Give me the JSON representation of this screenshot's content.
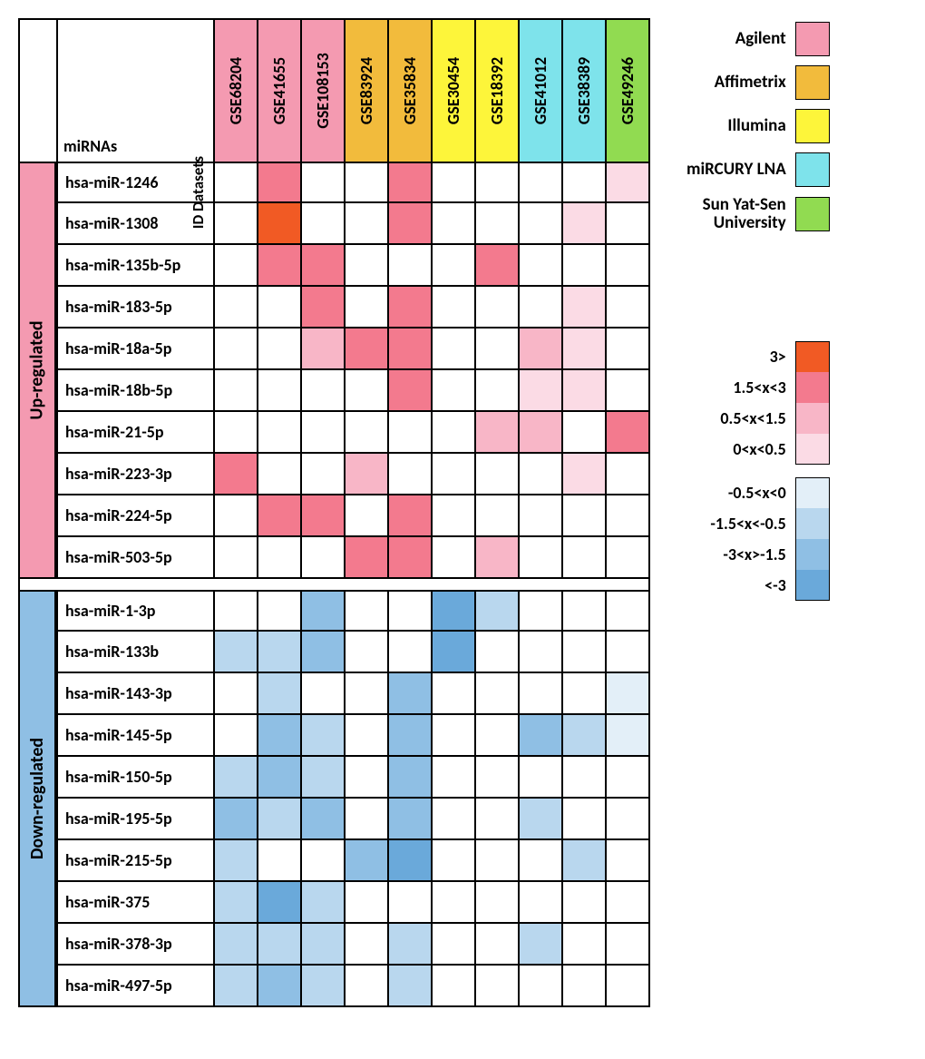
{
  "labels": {
    "mirnas_header": "miRNAs",
    "id_datasets": "ID Datasets",
    "up_section": "Up-regulated",
    "down_section": "Down-regulated"
  },
  "datasets": [
    {
      "id": "GSE68204",
      "platform_color": "#f49ab1"
    },
    {
      "id": "GSE41655",
      "platform_color": "#f49ab1"
    },
    {
      "id": "GSE108153",
      "platform_color": "#f49ab1"
    },
    {
      "id": "GSE83924",
      "platform_color": "#f2bb3c"
    },
    {
      "id": "GSE35834",
      "platform_color": "#f2bb3c"
    },
    {
      "id": "GSE30454",
      "platform_color": "#fdf53a"
    },
    {
      "id": "GSE18392",
      "platform_color": "#fdf53a"
    },
    {
      "id": "GSE41012",
      "platform_color": "#7ee3eb"
    },
    {
      "id": "GSE38389",
      "platform_color": "#7ee3eb"
    },
    {
      "id": "GSE49246",
      "platform_color": "#91db51"
    }
  ],
  "value_colors": {
    "p3": "#f15a24",
    "p2": "#f37a8e",
    "p1": "#f8b6c7",
    "p0": "#fbdbe5",
    "n0": "#e3eff8",
    "n1": "#b9d7ee",
    "n2": "#8fbfe4",
    "n3": "#6aa9da",
    "blank": "#ffffff"
  },
  "up_rows": [
    {
      "name": "hsa-miR-1246",
      "cells": [
        "blank",
        "p2",
        "blank",
        "blank",
        "p2",
        "blank",
        "blank",
        "blank",
        "blank",
        "p0"
      ]
    },
    {
      "name": "hsa-miR-1308",
      "cells": [
        "blank",
        "p3",
        "blank",
        "blank",
        "p2",
        "blank",
        "blank",
        "blank",
        "p0",
        "blank"
      ]
    },
    {
      "name": "hsa-miR-135b-5p",
      "cells": [
        "blank",
        "p2",
        "p2",
        "blank",
        "blank",
        "blank",
        "p2",
        "blank",
        "blank",
        "blank"
      ]
    },
    {
      "name": "hsa-miR-183-5p",
      "cells": [
        "blank",
        "blank",
        "p2",
        "blank",
        "p2",
        "blank",
        "blank",
        "blank",
        "p0",
        "blank"
      ]
    },
    {
      "name": "hsa-miR-18a-5p",
      "cells": [
        "blank",
        "blank",
        "p1",
        "p2",
        "p2",
        "blank",
        "blank",
        "p1",
        "p0",
        "blank"
      ]
    },
    {
      "name": "hsa-miR-18b-5p",
      "cells": [
        "blank",
        "blank",
        "blank",
        "blank",
        "p2",
        "blank",
        "blank",
        "p0",
        "p0",
        "blank"
      ]
    },
    {
      "name": "hsa-miR-21-5p",
      "cells": [
        "blank",
        "blank",
        "blank",
        "blank",
        "blank",
        "blank",
        "p1",
        "p1",
        "blank",
        "p2"
      ]
    },
    {
      "name": "hsa-miR-223-3p",
      "cells": [
        "p2",
        "blank",
        "blank",
        "p1",
        "blank",
        "blank",
        "blank",
        "blank",
        "p0",
        "blank"
      ]
    },
    {
      "name": "hsa-miR-224-5p",
      "cells": [
        "blank",
        "p2",
        "p2",
        "blank",
        "p2",
        "blank",
        "blank",
        "blank",
        "blank",
        "blank"
      ]
    },
    {
      "name": "hsa-miR-503-5p",
      "cells": [
        "blank",
        "blank",
        "blank",
        "p2",
        "p2",
        "blank",
        "p1",
        "blank",
        "blank",
        "blank"
      ]
    }
  ],
  "down_rows": [
    {
      "name": "hsa-miR-1-3p",
      "cells": [
        "blank",
        "blank",
        "n2",
        "blank",
        "blank",
        "n3",
        "n1",
        "blank",
        "blank",
        "blank"
      ]
    },
    {
      "name": "hsa-miR-133b",
      "cells": [
        "n1",
        "n1",
        "n2",
        "blank",
        "blank",
        "n3",
        "blank",
        "blank",
        "blank",
        "blank"
      ]
    },
    {
      "name": "hsa-miR-143-3p",
      "cells": [
        "blank",
        "n1",
        "blank",
        "blank",
        "n2",
        "blank",
        "blank",
        "blank",
        "blank",
        "n0"
      ]
    },
    {
      "name": "hsa-miR-145-5p",
      "cells": [
        "blank",
        "n2",
        "n1",
        "blank",
        "n2",
        "blank",
        "blank",
        "n2",
        "n1",
        "n0"
      ]
    },
    {
      "name": "hsa-miR-150-5p",
      "cells": [
        "n1",
        "n2",
        "n1",
        "blank",
        "n2",
        "blank",
        "blank",
        "blank",
        "blank",
        "blank"
      ]
    },
    {
      "name": "hsa-miR-195-5p",
      "cells": [
        "n2",
        "n1",
        "n2",
        "blank",
        "n2",
        "blank",
        "blank",
        "n1",
        "blank",
        "blank"
      ]
    },
    {
      "name": "hsa-miR-215-5p",
      "cells": [
        "n1",
        "blank",
        "blank",
        "n2",
        "n3",
        "blank",
        "blank",
        "blank",
        "n1",
        "blank"
      ]
    },
    {
      "name": "hsa-miR-375",
      "cells": [
        "n1",
        "n3",
        "n1",
        "blank",
        "blank",
        "blank",
        "blank",
        "blank",
        "blank",
        "blank"
      ]
    },
    {
      "name": "hsa-miR-378-3p",
      "cells": [
        "n1",
        "n1",
        "n1",
        "blank",
        "n1",
        "blank",
        "blank",
        "n1",
        "blank",
        "blank"
      ]
    },
    {
      "name": "hsa-miR-497-5p",
      "cells": [
        "n1",
        "n2",
        "n1",
        "blank",
        "n1",
        "blank",
        "blank",
        "blank",
        "blank",
        "blank"
      ]
    }
  ],
  "platform_legend": [
    {
      "label": "Agilent",
      "color": "#f49ab1"
    },
    {
      "label": "Affimetrix",
      "color": "#f2bb3c"
    },
    {
      "label": "Illumina",
      "color": "#fdf53a"
    },
    {
      "label": "miRCURY LNA",
      "color": "#7ee3eb"
    },
    {
      "label": "Sun Yat-Sen\nUniversity",
      "color": "#91db51"
    }
  ],
  "scale_legend_up": [
    {
      "label": "3>",
      "color": "#f15a24"
    },
    {
      "label": "1.5<x<3",
      "color": "#f37a8e"
    },
    {
      "label": "0.5<x<1.5",
      "color": "#f8b6c7"
    },
    {
      "label": "0<x<0.5",
      "color": "#fbdbe5"
    }
  ],
  "scale_legend_down": [
    {
      "label": "-0.5<x<0",
      "color": "#e3eff8"
    },
    {
      "label": "-1.5<x<-0.5",
      "color": "#b9d7ee"
    },
    {
      "label": "-3<x>-1.5",
      "color": "#8fbfe4"
    },
    {
      "label": "<-3",
      "color": "#6aa9da"
    }
  ],
  "section_colors": {
    "up": "#f49ab1",
    "down": "#8fbfe4"
  }
}
